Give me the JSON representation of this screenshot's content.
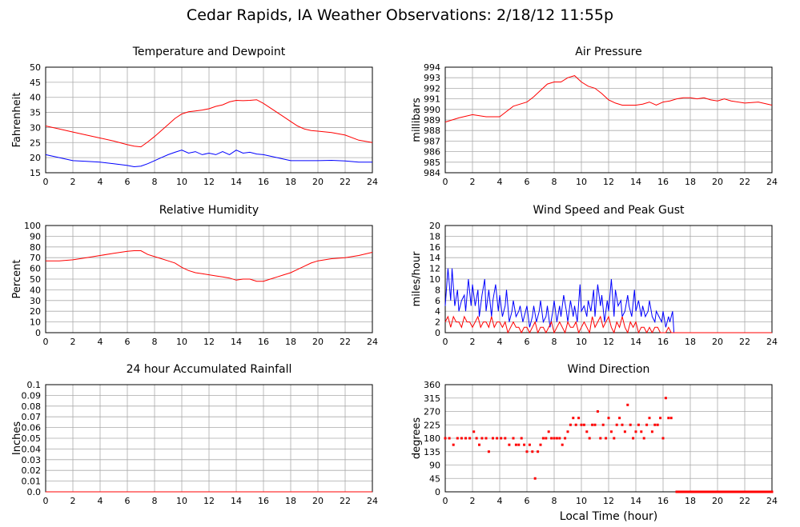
{
  "page": {
    "title": "Cedar Rapids, IA Weather Observations: 2/18/12 11:55p"
  },
  "chart_data": [
    {
      "id": "temp",
      "type": "line",
      "title": "Temperature and Dewpoint",
      "xlabel": "",
      "ylabel": "Fahrenheit",
      "xlim": [
        0,
        24
      ],
      "ylim": [
        15,
        50
      ],
      "xticks": [
        0,
        2,
        4,
        6,
        8,
        10,
        12,
        14,
        16,
        18,
        20,
        22,
        24
      ],
      "yticks": [
        "15",
        "20",
        "25",
        "30",
        "35",
        "40",
        "45",
        "50"
      ],
      "grid": true,
      "series": [
        {
          "color": "#ff0000",
          "x": [
            0,
            1,
            2,
            3,
            4,
            5,
            6,
            6.5,
            7,
            7.5,
            8,
            8.5,
            9,
            9.5,
            10,
            10.5,
            11,
            11.5,
            12,
            12.5,
            13,
            13.5,
            14,
            14.5,
            15,
            15.5,
            16,
            16.5,
            17,
            17.5,
            18,
            18.5,
            19,
            19.5,
            20,
            21,
            22,
            23,
            24
          ],
          "y": [
            30.5,
            29.5,
            28.5,
            27.5,
            26.5,
            25.5,
            24.3,
            23.8,
            23.6,
            25.2,
            27,
            29,
            31,
            33,
            34.5,
            35.2,
            35.5,
            35.8,
            36.2,
            37,
            37.5,
            38.5,
            39,
            38.9,
            39,
            39.2,
            38,
            36.5,
            35,
            33.5,
            32,
            30.5,
            29.5,
            29,
            28.8,
            28.3,
            27.5,
            25.8,
            25
          ]
        },
        {
          "color": "#0000ff",
          "x": [
            0,
            1,
            2,
            3,
            4,
            5,
            6,
            6.5,
            7,
            7.5,
            8,
            8.5,
            9,
            9.5,
            10,
            10.5,
            11,
            11.5,
            12,
            12.5,
            13,
            13.5,
            14,
            14.5,
            15,
            15.5,
            16,
            16.5,
            17,
            17.5,
            18,
            19,
            20,
            21,
            22,
            23,
            24
          ],
          "y": [
            21,
            20,
            19,
            18.8,
            18.5,
            18,
            17.4,
            17,
            17.2,
            18,
            19,
            20,
            21,
            21.8,
            22.5,
            21.5,
            22,
            21,
            21.5,
            21,
            22,
            21,
            22.5,
            21.5,
            21.8,
            21.2,
            21,
            20.5,
            20,
            19.5,
            19,
            19,
            19,
            19.1,
            18.9,
            18.5,
            18.5
          ]
        }
      ]
    },
    {
      "id": "pressure",
      "type": "line",
      "title": "Air Pressure",
      "xlabel": "",
      "ylabel": "millibars",
      "xlim": [
        0,
        24
      ],
      "ylim": [
        984,
        994
      ],
      "xticks": [
        0,
        2,
        4,
        6,
        8,
        10,
        12,
        14,
        16,
        18,
        20,
        22,
        24
      ],
      "yticks": [
        "984",
        "985",
        "986",
        "987",
        "988",
        "989",
        "990",
        "991",
        "992",
        "993",
        "994"
      ],
      "grid": true,
      "series": [
        {
          "color": "#ff0000",
          "x": [
            0,
            1,
            2,
            3,
            4,
            4.5,
            5,
            6,
            6.5,
            7,
            7.5,
            8,
            8.5,
            9,
            9.5,
            10,
            10.5,
            11,
            11.5,
            12,
            12.5,
            13,
            13.5,
            14,
            14.5,
            15,
            15.5,
            16,
            16.5,
            17,
            17.5,
            18,
            18.5,
            19,
            19.5,
            20,
            20.5,
            21,
            22,
            23,
            24
          ],
          "y": [
            988.8,
            989.2,
            989.5,
            989.3,
            989.3,
            989.8,
            990.3,
            990.7,
            991.2,
            991.8,
            992.4,
            992.6,
            992.6,
            993,
            993.2,
            992.6,
            992.2,
            992,
            991.5,
            990.9,
            990.6,
            990.4,
            990.4,
            990.4,
            990.5,
            990.7,
            990.4,
            990.7,
            990.8,
            991,
            991.1,
            991.1,
            991,
            991.1,
            990.9,
            990.8,
            991,
            990.8,
            990.6,
            990.7,
            990.4
          ]
        }
      ]
    },
    {
      "id": "humidity",
      "type": "line",
      "title": "Relative Humidity",
      "xlabel": "",
      "ylabel": "Percent",
      "xlim": [
        0,
        24
      ],
      "ylim": [
        0,
        100
      ],
      "xticks": [
        0,
        2,
        4,
        6,
        8,
        10,
        12,
        14,
        16,
        18,
        20,
        22,
        24
      ],
      "yticks": [
        "0",
        "10",
        "20",
        "30",
        "40",
        "50",
        "60",
        "70",
        "80",
        "90",
        "100"
      ],
      "grid": true,
      "series": [
        {
          "color": "#ff0000",
          "x": [
            0,
            1,
            2,
            3,
            4,
            5,
            6,
            6.5,
            7,
            7.5,
            8,
            8.5,
            9,
            9.5,
            10,
            10.5,
            11,
            11.5,
            12,
            12.5,
            13,
            13.5,
            14,
            14.5,
            15,
            15.5,
            16,
            16.5,
            17,
            17.5,
            18,
            18.5,
            19,
            19.5,
            20,
            21,
            22,
            23,
            24
          ],
          "y": [
            67,
            67,
            68,
            70,
            72,
            74,
            76,
            76.5,
            76.5,
            73,
            71,
            69,
            67,
            65,
            61,
            58,
            56,
            55,
            54,
            53,
            52,
            51,
            49,
            50,
            50,
            48,
            48,
            50,
            52,
            54,
            56,
            59,
            62,
            65,
            67,
            69,
            70,
            72,
            75
          ]
        }
      ]
    },
    {
      "id": "wind",
      "type": "line",
      "title": "Wind Speed and Peak Gust",
      "xlabel": "",
      "ylabel": "miles/hour",
      "xlim": [
        0,
        24
      ],
      "ylim": [
        0,
        20
      ],
      "xticks": [
        0,
        2,
        4,
        6,
        8,
        10,
        12,
        14,
        16,
        18,
        20,
        22,
        24
      ],
      "yticks": [
        "0",
        "2",
        "4",
        "6",
        "8",
        "10",
        "12",
        "14",
        "16",
        "18",
        "20"
      ],
      "grid": true,
      "series": [
        {
          "color": "#0000ff",
          "x": [
            0,
            0.2,
            0.4,
            0.5,
            0.7,
            0.9,
            1,
            1.2,
            1.4,
            1.5,
            1.7,
            1.9,
            2,
            2.2,
            2.4,
            2.5,
            2.7,
            2.9,
            3,
            3.2,
            3.4,
            3.5,
            3.7,
            3.9,
            4,
            4.2,
            4.4,
            4.5,
            4.7,
            4.9,
            5,
            5.2,
            5.4,
            5.5,
            5.7,
            5.9,
            6,
            6.2,
            6.4,
            6.5,
            6.7,
            6.9,
            7,
            7.2,
            7.4,
            7.5,
            7.7,
            7.9,
            8,
            8.2,
            8.4,
            8.5,
            8.7,
            8.9,
            9,
            9.2,
            9.4,
            9.5,
            9.7,
            9.9,
            10,
            10.2,
            10.4,
            10.5,
            10.7,
            10.9,
            11,
            11.2,
            11.4,
            11.5,
            11.7,
            11.9,
            12,
            12.2,
            12.4,
            12.5,
            12.7,
            12.9,
            13,
            13.2,
            13.4,
            13.5,
            13.7,
            13.9,
            14,
            14.2,
            14.4,
            14.5,
            14.7,
            14.9,
            15,
            15.2,
            15.4,
            15.5,
            15.7,
            15.9,
            16,
            16.2,
            16.4,
            16.5,
            16.7,
            16.8,
            17,
            24
          ],
          "y": [
            5,
            12,
            6,
            12,
            5,
            8,
            4,
            6,
            7,
            4,
            10,
            5,
            9,
            5,
            8,
            3,
            7,
            10,
            4,
            8,
            3,
            6,
            9,
            4,
            7,
            3,
            5,
            8,
            2,
            4,
            6,
            3,
            4,
            5,
            2,
            4,
            5,
            1,
            3,
            5,
            2,
            4,
            6,
            2,
            3,
            5,
            1,
            4,
            6,
            2,
            5,
            3,
            7,
            4,
            2,
            6,
            3,
            5,
            2,
            9,
            4,
            5,
            3,
            6,
            4,
            8,
            3,
            9,
            5,
            7,
            2,
            6,
            4,
            10,
            3,
            8,
            5,
            6,
            3,
            4,
            7,
            5,
            3,
            8,
            4,
            6,
            3,
            5,
            3,
            4,
            6,
            3,
            2,
            4,
            3,
            2,
            4,
            1,
            3,
            2,
            4,
            0,
            0,
            0
          ]
        },
        {
          "color": "#ff0000",
          "x": [
            0,
            0.2,
            0.4,
            0.6,
            0.8,
            1,
            1.2,
            1.4,
            1.6,
            1.8,
            2,
            2.2,
            2.4,
            2.6,
            2.8,
            3,
            3.2,
            3.4,
            3.6,
            3.8,
            4,
            4.2,
            4.4,
            4.6,
            4.8,
            5,
            5.2,
            5.4,
            5.6,
            5.8,
            6,
            6.2,
            6.4,
            6.6,
            6.8,
            7,
            7.2,
            7.4,
            7.6,
            7.8,
            8,
            8.2,
            8.4,
            8.6,
            8.8,
            9,
            9.2,
            9.4,
            9.6,
            9.8,
            10,
            10.2,
            10.4,
            10.6,
            10.8,
            11,
            11.2,
            11.4,
            11.6,
            11.8,
            12,
            12.2,
            12.4,
            12.6,
            12.8,
            13,
            13.2,
            13.4,
            13.6,
            13.8,
            14,
            14.2,
            14.4,
            14.6,
            14.8,
            15,
            15.2,
            15.4,
            15.6,
            15.8,
            16,
            16.2,
            16.4,
            16.6,
            16.8,
            17,
            24
          ],
          "y": [
            2,
            3,
            1,
            3,
            2,
            2,
            1,
            3,
            2,
            2,
            1,
            2,
            3,
            1,
            2,
            2,
            1,
            3,
            1,
            2,
            2,
            1,
            2,
            0,
            1,
            2,
            1,
            1,
            0,
            1,
            1,
            0,
            1,
            2,
            0,
            1,
            1,
            0,
            1,
            2,
            0,
            1,
            2,
            1,
            0,
            2,
            1,
            1,
            2,
            0,
            1,
            2,
            1,
            0,
            3,
            1,
            2,
            3,
            1,
            2,
            3,
            1,
            0,
            2,
            1,
            3,
            1,
            0,
            2,
            1,
            2,
            0,
            1,
            1,
            0,
            1,
            0,
            1,
            1,
            0,
            0,
            0,
            1,
            0,
            0,
            0,
            0
          ]
        }
      ]
    },
    {
      "id": "rain",
      "type": "line",
      "title": "24 hour Accumulated Rainfall",
      "xlabel": "",
      "ylabel": "Inches",
      "xlim": [
        0,
        24
      ],
      "ylim": [
        0,
        0.1
      ],
      "xticks": [
        0,
        2,
        4,
        6,
        8,
        10,
        12,
        14,
        16,
        18,
        20,
        22,
        24
      ],
      "yticks": [
        "0.0",
        "0.01",
        "0.02",
        "0.03",
        "0.04",
        "0.05",
        "0.06",
        "0.07",
        "0.08",
        "0.09",
        "0.1"
      ],
      "grid": true,
      "series": [
        {
          "color": "#ff0000",
          "x": [
            0,
            24
          ],
          "y": [
            0,
            0
          ]
        }
      ]
    },
    {
      "id": "winddir",
      "type": "scatter",
      "title": "Wind Direction",
      "xlabel": "Local Time (hour)",
      "ylabel": "degrees",
      "xlim": [
        0,
        24
      ],
      "ylim": [
        0,
        360
      ],
      "xticks": [
        0,
        2,
        4,
        6,
        8,
        10,
        12,
        14,
        16,
        18,
        20,
        22,
        24
      ],
      "yticks": [
        "0",
        "45",
        "90",
        "135",
        "180",
        "225",
        "270",
        "315",
        "360"
      ],
      "grid": true,
      "series": [
        {
          "color": "#ff0000",
          "x": [
            0,
            0.3,
            0.6,
            0.9,
            1.2,
            1.5,
            1.8,
            2.1,
            2.3,
            2.5,
            2.7,
            3,
            3.2,
            3.5,
            3.8,
            4.1,
            4.4,
            4.7,
            5,
            5.2,
            5.4,
            5.6,
            5.8,
            6,
            6.2,
            6.4,
            6.6,
            6.8,
            7,
            7.2,
            7.4,
            7.6,
            7.8,
            8,
            8.2,
            8.4,
            8.6,
            8.8,
            9,
            9.2,
            9.4,
            9.6,
            9.8,
            10,
            10.2,
            10.4,
            10.6,
            10.8,
            11,
            11.2,
            11.4,
            11.6,
            11.8,
            12,
            12.2,
            12.4,
            12.6,
            12.8,
            13,
            13.2,
            13.4,
            13.6,
            13.8,
            14,
            14.2,
            14.4,
            14.6,
            14.8,
            15,
            15.2,
            15.4,
            15.6,
            15.8,
            16,
            16.2,
            16.4,
            16.6,
            17,
            17.5,
            18,
            18.5,
            19,
            19.5,
            20,
            20.5,
            21,
            21.5,
            22,
            22.5,
            23,
            23.5,
            24
          ],
          "y": [
            180,
            180,
            158,
            180,
            180,
            180,
            180,
            202,
            180,
            158,
            180,
            180,
            135,
            180,
            180,
            180,
            180,
            158,
            180,
            158,
            158,
            180,
            158,
            135,
            158,
            135,
            45,
            135,
            158,
            180,
            180,
            202,
            180,
            180,
            180,
            180,
            158,
            180,
            202,
            225,
            248,
            225,
            248,
            225,
            225,
            202,
            180,
            225,
            225,
            270,
            180,
            225,
            180,
            248,
            202,
            180,
            225,
            248,
            225,
            202,
            292,
            225,
            180,
            202,
            225,
            202,
            180,
            225,
            248,
            202,
            225,
            225,
            248,
            180,
            315,
            248,
            248,
            0,
            0,
            0,
            0,
            0,
            0,
            0,
            0,
            0,
            0,
            0,
            0,
            0,
            0,
            0
          ]
        }
      ]
    }
  ]
}
